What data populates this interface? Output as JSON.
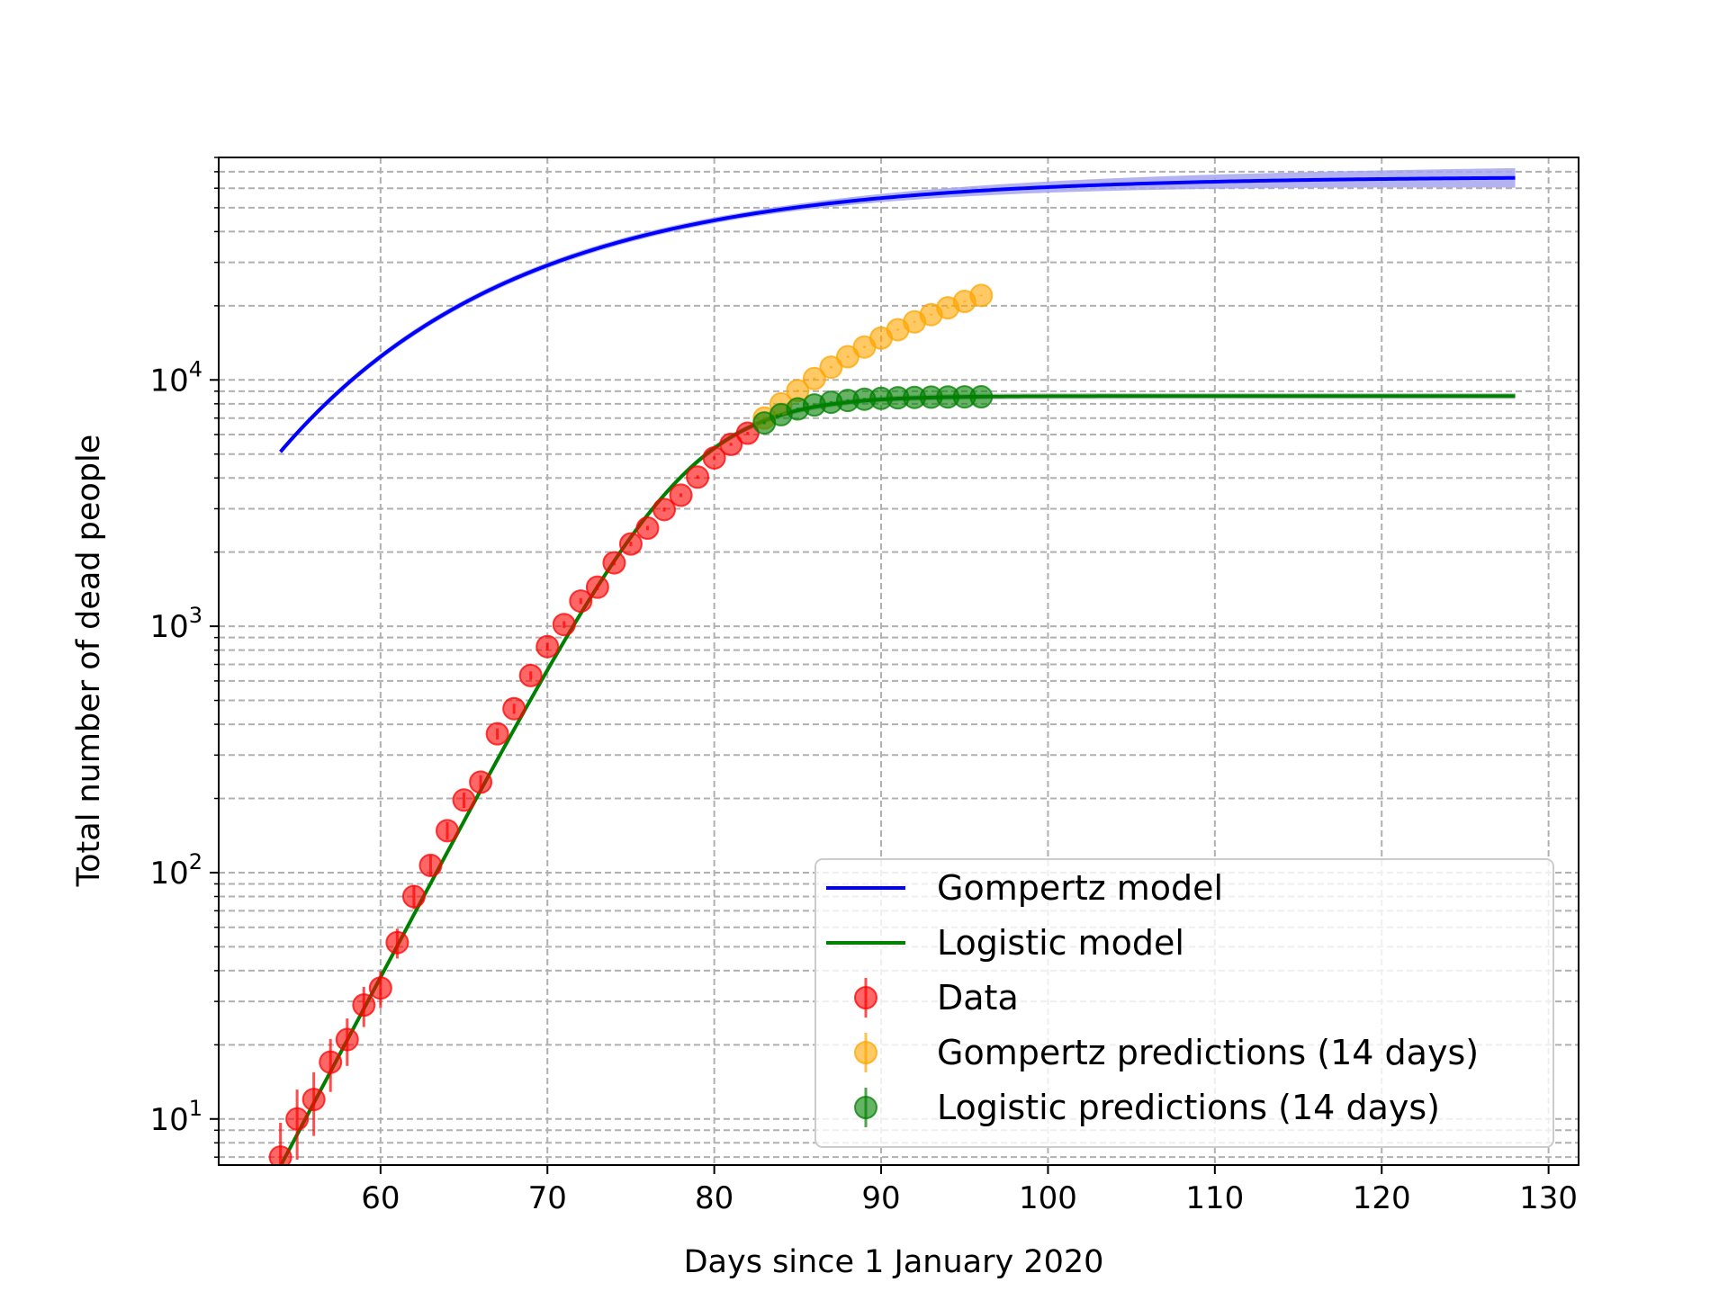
{
  "chart_data": {
    "type": "line",
    "title": "",
    "xlabel": "Days since 1 January 2020",
    "ylabel": "Total number of dead people",
    "xlim": [
      50.3,
      131.8
    ],
    "ylim": [
      6.5,
      80000
    ],
    "yscale": "log",
    "grid": true,
    "legend_position": "lower-right",
    "x_ticks": [
      60,
      70,
      80,
      90,
      100,
      110,
      120,
      130
    ],
    "x_tick_labels": [
      "60",
      "70",
      "80",
      "90",
      "100",
      "110",
      "120",
      "130"
    ],
    "y_ticks": [
      10,
      100,
      1000,
      10000
    ],
    "y_tick_labels": [
      {
        "base": "10",
        "exp": "1"
      },
      {
        "base": "10",
        "exp": "2"
      },
      {
        "base": "10",
        "exp": "3"
      },
      {
        "base": "10",
        "exp": "4"
      }
    ],
    "series": [
      {
        "name": "Gompertz model",
        "kind": "line",
        "color": "#0000ff",
        "band_color": "#a6a6f0",
        "model": "gompertz",
        "params": {
          "a": 67000,
          "b": 0.0706,
          "c": 67.39
        },
        "x_range": [
          54,
          128
        ]
      },
      {
        "name": "Logistic model",
        "kind": "line",
        "color": "#008000",
        "model": "logistic",
        "params": {
          "K": 8600,
          "r": 0.2947,
          "x0": 78.42
        },
        "x_range": [
          54,
          128
        ]
      },
      {
        "name": "Data",
        "kind": "errorbar",
        "color": "#ff0000",
        "x": [
          54,
          55,
          56,
          57,
          58,
          59,
          60,
          61,
          62,
          63,
          64,
          65,
          66,
          67,
          68,
          69,
          70,
          71,
          72,
          73,
          74,
          75,
          76,
          77,
          78,
          79,
          80,
          81,
          82
        ],
        "y": [
          7,
          10,
          12,
          17,
          21,
          29,
          34,
          52,
          80,
          107,
          148,
          197,
          233,
          366,
          463,
          631,
          827,
          1016,
          1266,
          1441,
          1809,
          2158,
          2503,
          2978,
          3405,
          4032,
          4825,
          5476,
          6077
        ]
      },
      {
        "name": "Gompertz predictions (14 days)",
        "kind": "errorbar",
        "color": "#ffa500",
        "x": [
          83,
          84,
          85,
          86,
          87,
          88,
          89,
          90,
          91,
          92,
          93,
          94,
          95,
          96
        ],
        "y": [
          7004,
          7999,
          9044,
          10130,
          11260,
          12420,
          13600,
          14790,
          15990,
          17200,
          18410,
          19620,
          20830,
          22030
        ]
      },
      {
        "name": "Logistic predictions (14 days)",
        "kind": "errorbar",
        "color": "#008000",
        "x": [
          83,
          84,
          85,
          86,
          87,
          88,
          89,
          90,
          91,
          92,
          93,
          94,
          95,
          96
        ],
        "y": [
          6690,
          7227,
          7625,
          7913,
          8116,
          8256,
          8353,
          8418,
          8463,
          8493,
          8513,
          8527,
          8536,
          8542
        ]
      }
    ]
  }
}
